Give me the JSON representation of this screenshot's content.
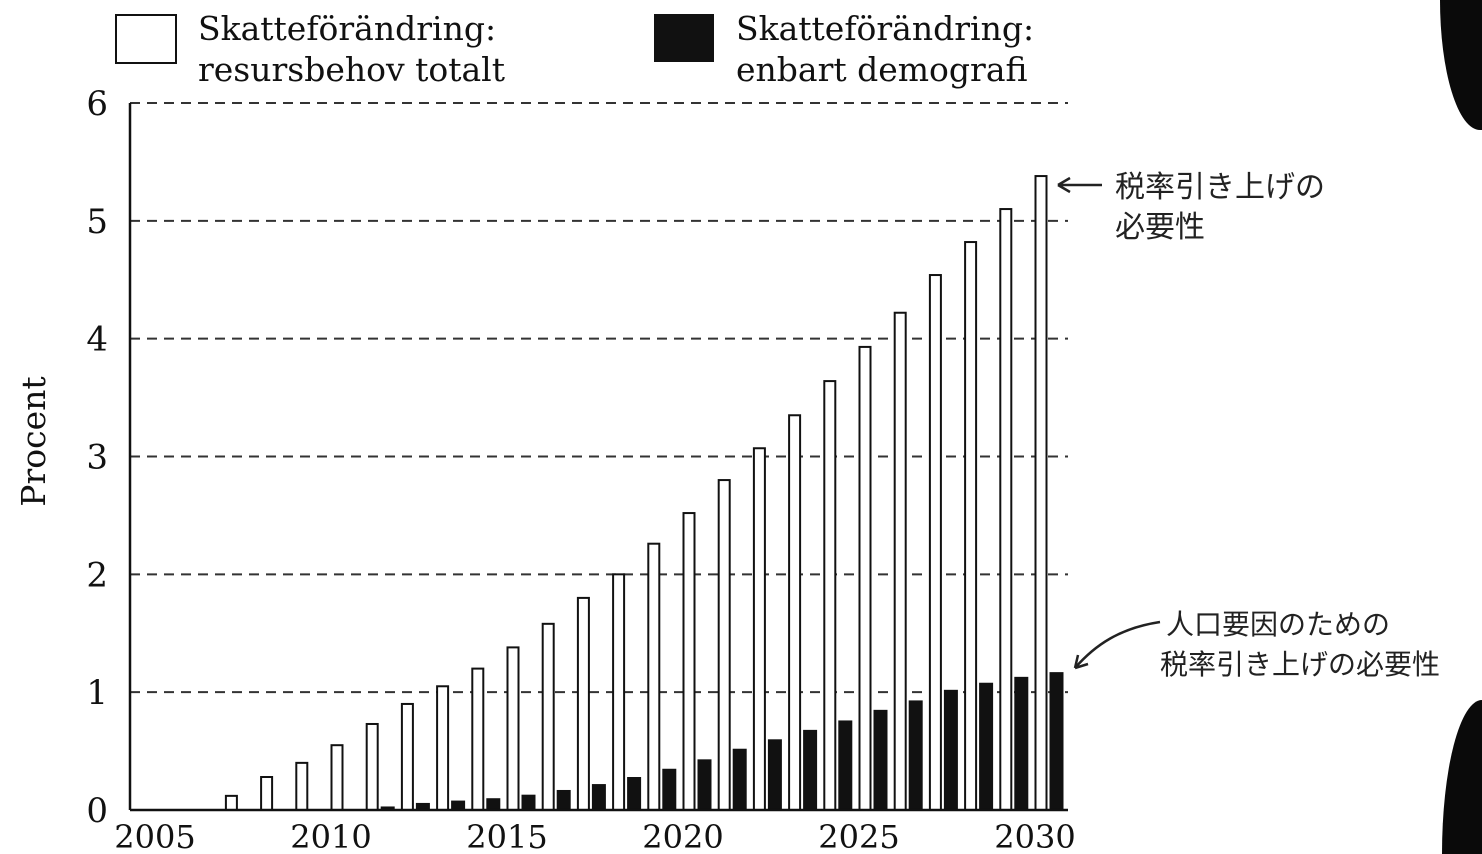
{
  "legend": {
    "total": {
      "line1": "Skatteförändring:",
      "line2": "resursbehov totalt"
    },
    "demographic": {
      "line1": "Skatteförändring:",
      "line2": "enbart demografi"
    }
  },
  "annotations": {
    "top": {
      "line1": "税率引き上げの",
      "line2": "必要性"
    },
    "bottom": {
      "line1": "人口要因のための",
      "line2": "税率引き上げの必要性"
    }
  },
  "colors": {
    "bar_total": "#ffffff",
    "bar_demographic": "#111111",
    "grid": "#333333",
    "axis": "#111111"
  },
  "chart_data": {
    "type": "bar",
    "ylabel": "Procent",
    "xlabel": "",
    "ylim": [
      0,
      6
    ],
    "yticks": [
      0,
      1,
      2,
      3,
      4,
      5,
      6
    ],
    "xticks": [
      2005,
      2010,
      2015,
      2020,
      2025,
      2030
    ],
    "x": [
      2005,
      2006,
      2007,
      2008,
      2009,
      2010,
      2011,
      2012,
      2013,
      2014,
      2015,
      2016,
      2017,
      2018,
      2019,
      2020,
      2021,
      2022,
      2023,
      2024,
      2025,
      2026,
      2027,
      2028,
      2029,
      2030
    ],
    "grid": "horizontal dashed",
    "legend_position": "top",
    "series": [
      {
        "name": "Skatteförändring: resursbehov totalt",
        "fill": "white",
        "values": [
          0,
          0,
          0.12,
          0.28,
          0.4,
          0.55,
          0.73,
          0.9,
          1.05,
          1.2,
          1.38,
          1.58,
          1.8,
          2.0,
          2.26,
          2.52,
          2.8,
          3.07,
          3.35,
          3.64,
          3.93,
          4.22,
          4.54,
          4.82,
          5.1,
          5.38
        ]
      },
      {
        "name": "Skatteförändring: enbart demografi",
        "fill": "black",
        "values": [
          0,
          0,
          0,
          0,
          0,
          0,
          0.03,
          0.06,
          0.08,
          0.1,
          0.13,
          0.17,
          0.22,
          0.28,
          0.35,
          0.43,
          0.52,
          0.6,
          0.68,
          0.76,
          0.85,
          0.93,
          1.02,
          1.08,
          1.13,
          1.17
        ]
      }
    ]
  }
}
